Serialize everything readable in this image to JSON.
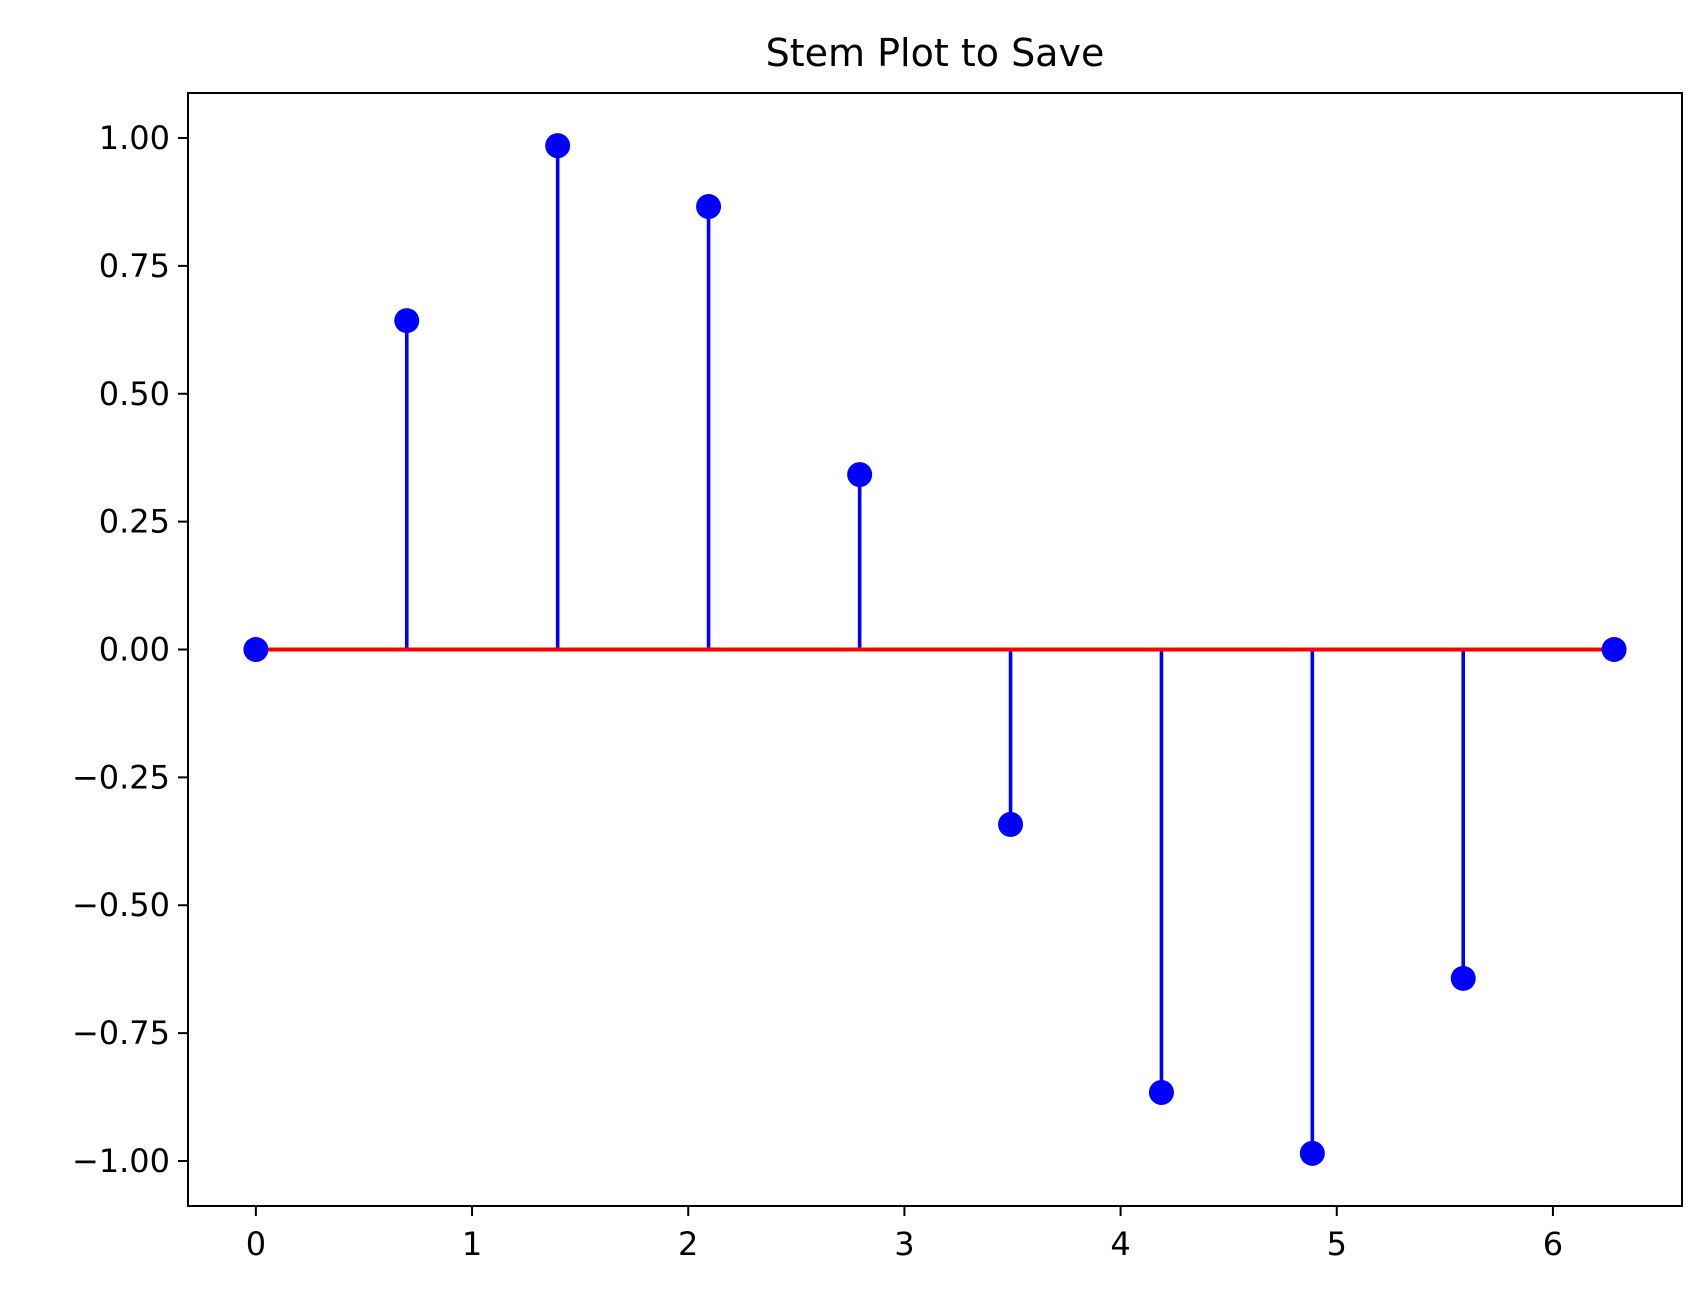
{
  "chart_data": {
    "type": "stem",
    "title": "Stem Plot to Save",
    "xlabel": "",
    "ylabel": "",
    "xlim": [
      -0.314,
      6.597
    ],
    "ylim": [
      -1.088,
      1.088
    ],
    "x_ticks": [
      0,
      1,
      2,
      3,
      4,
      5,
      6
    ],
    "x_tick_labels": [
      "0",
      "1",
      "2",
      "3",
      "4",
      "5",
      "6"
    ],
    "y_ticks": [
      1.0,
      0.75,
      0.5,
      0.25,
      0.0,
      -0.25,
      -0.5,
      -0.75,
      -1.0
    ],
    "y_tick_labels": [
      "1.00",
      "0.75",
      "0.50",
      "0.25",
      "0.00",
      "−0.25",
      "−0.50",
      "−0.75",
      "−1.00"
    ],
    "grid": false,
    "baseline": 0,
    "series": [
      {
        "x": [
          0.0,
          0.698,
          1.396,
          2.094,
          2.793,
          3.491,
          4.189,
          4.887,
          5.585,
          6.283
        ],
        "y": [
          0.0,
          0.643,
          0.985,
          0.866,
          0.342,
          -0.342,
          -0.866,
          -0.985,
          -0.643,
          0.0
        ],
        "marker_color": "#0000ff",
        "stem_color": "#0000ff",
        "baseline_color": "#ff0000"
      }
    ]
  }
}
